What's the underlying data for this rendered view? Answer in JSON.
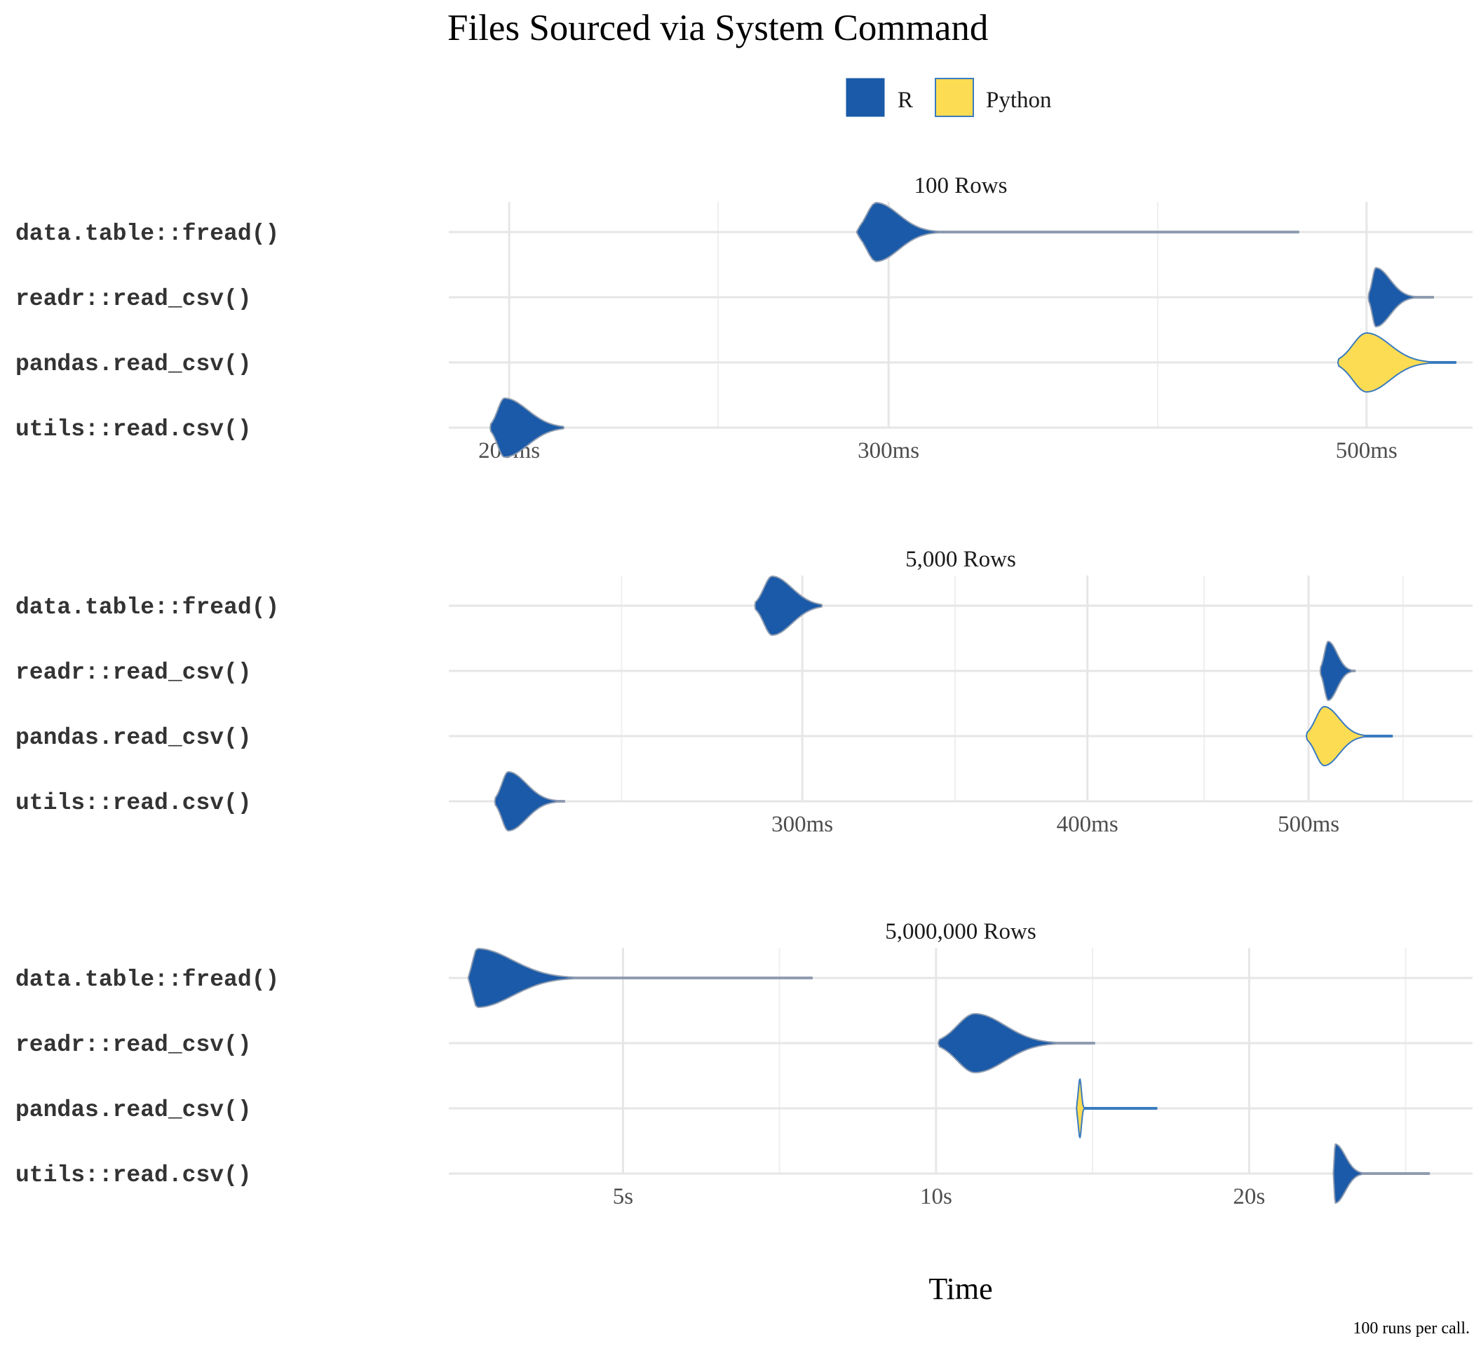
{
  "chart_data": {
    "type": "violin",
    "title": "Files Sourced via System Command",
    "xlabel": "Time",
    "caption": "100 runs per call.",
    "x_scale": "log",
    "legend": {
      "position": "top",
      "entries": [
        {
          "name": "R",
          "color": "#1a5aa8"
        },
        {
          "name": "Python",
          "color": "#fcdc52"
        }
      ]
    },
    "categories": [
      "data.table::fread()",
      "readr::read_csv()",
      "pandas.read_csv()",
      "utils::read.csv()"
    ],
    "facets": [
      {
        "title": "100 Rows",
        "xlim_seconds": [
          0.1875,
          0.56
        ],
        "major_ticks": [
          {
            "value": 0.2,
            "label": "200ms"
          },
          {
            "value": 0.3,
            "label": "300ms"
          },
          {
            "value": 0.5,
            "label": "500ms"
          }
        ],
        "minor_ticks": [
          0.25,
          0.4
        ],
        "series": [
          {
            "category": "data.table::fread()",
            "language": "R",
            "min": 0.29,
            "mode": 0.296,
            "max": 0.465,
            "bulk_end": 0.312
          },
          {
            "category": "readr::read_csv()",
            "language": "R",
            "min": 0.501,
            "mode": 0.505,
            "max": 0.537,
            "bulk_end": 0.522
          },
          {
            "category": "pandas.read_csv()",
            "language": "Python",
            "min": 0.485,
            "mode": 0.5,
            "max": 0.55,
            "bulk_end": 0.528
          },
          {
            "category": "utils::read.csv()",
            "language": "R",
            "min": 0.196,
            "mode": 0.199,
            "max": 0.212,
            "bulk_end": 0.21
          }
        ]
      },
      {
        "title": "5,000 Rows",
        "xlim_seconds": [
          0.21,
          0.59
        ],
        "major_ticks": [
          {
            "value": 0.3,
            "label": "300ms"
          },
          {
            "value": 0.4,
            "label": "400ms"
          },
          {
            "value": 0.5,
            "label": "500ms"
          }
        ],
        "minor_ticks": [
          0.25,
          0.35,
          0.45,
          0.55
        ],
        "series": [
          {
            "category": "data.table::fread()",
            "language": "R",
            "min": 0.286,
            "mode": 0.291,
            "max": 0.306,
            "bulk_end": 0.304
          },
          {
            "category": "readr::read_csv()",
            "language": "R",
            "min": 0.506,
            "mode": 0.51,
            "max": 0.524,
            "bulk_end": 0.52
          },
          {
            "category": "pandas.read_csv()",
            "language": "Python",
            "min": 0.499,
            "mode": 0.508,
            "max": 0.544,
            "bulk_end": 0.525
          },
          {
            "category": "utils::read.csv()",
            "language": "R",
            "min": 0.22,
            "mode": 0.223,
            "max": 0.236,
            "bulk_end": 0.232
          }
        ]
      },
      {
        "title": "5,000,000 Rows",
        "xlim_seconds": [
          3.4,
          32.8
        ],
        "major_ticks": [
          {
            "value": 5,
            "label": "5s"
          },
          {
            "value": 10,
            "label": "10s"
          },
          {
            "value": 20,
            "label": "20s"
          }
        ],
        "minor_ticks": [
          7.07,
          14.14,
          28.28
        ],
        "series": [
          {
            "category": "data.table::fread()",
            "language": "R",
            "min": 3.55,
            "mode": 3.62,
            "max": 7.6,
            "bulk_end": 4.3
          },
          {
            "category": "readr::read_csv()",
            "language": "R",
            "min": 10.05,
            "mode": 10.9,
            "max": 14.2,
            "bulk_end": 12.6
          },
          {
            "category": "pandas.read_csv()",
            "language": "Python",
            "min": 13.65,
            "mode": 13.75,
            "max": 16.3,
            "bulk_end": 13.85
          },
          {
            "category": "utils::read.csv()",
            "language": "R",
            "min": 24.1,
            "mode": 24.2,
            "max": 29.8,
            "bulk_end": 25.4
          }
        ]
      }
    ]
  }
}
